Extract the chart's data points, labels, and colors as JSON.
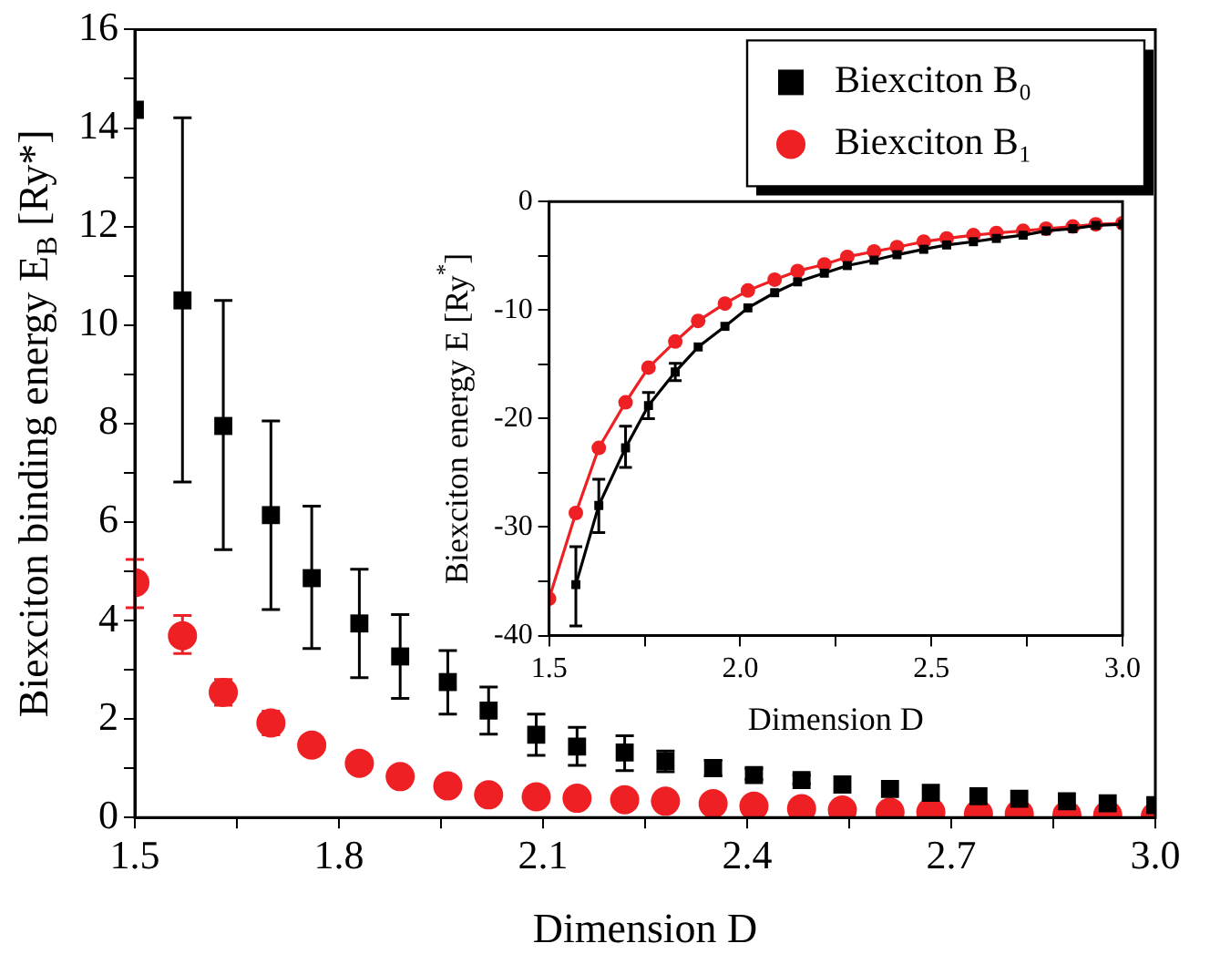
{
  "chart_data": [
    {
      "type": "scatter",
      "xlabel": "Dimension D",
      "ylabel": "Biexciton binding energy E$_{B}$ [Ry*]",
      "x": [
        1.5,
        1.57,
        1.63,
        1.7,
        1.76,
        1.83,
        1.89,
        1.96,
        2.02,
        2.09,
        2.15,
        2.22,
        2.28,
        2.35,
        2.41,
        2.48,
        2.54,
        2.61,
        2.67,
        2.74,
        2.8,
        2.87,
        2.93,
        3.0
      ],
      "series": [
        {
          "name": "Biexciton B₀",
          "color": "#000000",
          "marker": "square",
          "values": [
            14.37,
            10.5,
            7.95,
            6.14,
            4.86,
            3.94,
            3.27,
            2.75,
            2.17,
            1.68,
            1.44,
            1.32,
            1.14,
            1.0,
            0.86,
            0.76,
            0.67,
            0.58,
            0.5,
            0.43,
            0.38,
            0.33,
            0.29,
            0.25
          ],
          "errors": [
            null,
            [
              6.81,
              14.21
            ],
            [
              5.44,
              10.5
            ],
            [
              4.22,
              8.05
            ],
            [
              3.43,
              6.32
            ],
            [
              2.84,
              5.04
            ],
            [
              2.42,
              4.12
            ],
            [
              2.1,
              3.39
            ],
            [
              1.69,
              2.65
            ],
            [
              1.26,
              2.1
            ],
            [
              1.06,
              1.83
            ],
            [
              0.95,
              1.66
            ],
            [
              0.93,
              1.35
            ],
            [
              0.85,
              1.16
            ],
            [
              0.77,
              1.0
            ],
            [
              0.68,
              0.86
            ],
            null,
            null,
            null,
            null,
            null,
            null,
            null,
            null
          ]
        },
        {
          "name": "Biexciton B₁",
          "color": "#ee2024",
          "marker": "circle",
          "values": [
            4.77,
            3.69,
            2.54,
            1.92,
            1.47,
            1.1,
            0.83,
            0.64,
            0.46,
            0.42,
            0.39,
            0.36,
            0.33,
            0.28,
            0.23,
            0.18,
            0.15,
            0.11,
            0.11,
            0.07,
            0.07,
            0.05,
            0.05,
            0.02
          ],
          "errors": [
            [
              4.26,
              5.24
            ],
            [
              3.33,
              4.1
            ],
            [
              2.28,
              2.8
            ],
            [
              1.68,
              2.16
            ],
            null,
            null,
            null,
            null,
            null,
            null,
            null,
            null,
            null,
            null,
            null,
            null,
            null,
            null,
            null,
            null,
            null,
            null,
            null,
            null
          ]
        }
      ],
      "xlim": [
        1.5,
        3.0
      ],
      "xticks": [
        1.5,
        {
          "value": 1.65,
          "label": null
        },
        1.8,
        {
          "value": 1.95,
          "label": null
        },
        2.1,
        {
          "value": 2.25,
          "label": null
        },
        2.4,
        {
          "value": 2.55,
          "label": null
        },
        2.7,
        {
          "value": 2.85,
          "label": null
        },
        {
          "value": 3,
          "label": "3.0"
        }
      ],
      "ylim": [
        0,
        16
      ],
      "yticks": [
        0,
        {
          "value": 1,
          "label": null
        },
        2,
        {
          "value": 3,
          "label": null
        },
        4,
        {
          "value": 5,
          "label": null
        },
        6,
        {
          "value": 7,
          "label": null
        },
        8,
        {
          "value": 9,
          "label": null
        },
        10,
        {
          "value": 11,
          "label": null
        },
        12,
        {
          "value": 13,
          "label": null
        },
        14,
        {
          "value": 15,
          "label": null
        },
        16
      ],
      "grid": false,
      "legend": "top right"
    },
    {
      "type": "line",
      "xlabel": "Dimension D",
      "ylabel": "Biexciton energy E [Ry$^{*}$]",
      "x": [
        1.5,
        1.57,
        1.63,
        1.7,
        1.76,
        1.83,
        1.89,
        1.96,
        2.02,
        2.09,
        2.15,
        2.22,
        2.28,
        2.35,
        2.41,
        2.48,
        2.54,
        2.61,
        2.67,
        2.74,
        2.8,
        2.87,
        2.93,
        3.0
      ],
      "series": [
        {
          "color": "#000000",
          "marker": "square",
          "values": [
            null,
            -35.3,
            -28.0,
            -22.7,
            -18.8,
            -15.7,
            -13.4,
            -11.5,
            -9.8,
            -8.4,
            -7.4,
            -6.6,
            -5.9,
            -5.4,
            -4.9,
            -4.4,
            -4.0,
            -3.7,
            -3.4,
            -3.1,
            -2.7,
            -2.5,
            -2.2,
            -2.1
          ],
          "errors": [
            null,
            [
              -39.1,
              -31.8
            ],
            [
              -30.5,
              -25.6
            ],
            [
              -24.5,
              -20.7
            ],
            [
              -20.0,
              -17.6
            ],
            [
              -16.5,
              -14.9
            ],
            null,
            null,
            null,
            null,
            null,
            null,
            null,
            null,
            null,
            null,
            null,
            null,
            null,
            null,
            null,
            null,
            null,
            null
          ]
        },
        {
          "color": "#ee2024",
          "marker": "circle",
          "values": [
            -36.6,
            -28.7,
            -22.7,
            -18.5,
            -15.3,
            -12.9,
            -11.0,
            -9.4,
            -8.2,
            -7.2,
            -6.4,
            -5.8,
            -5.1,
            -4.6,
            -4.2,
            -3.7,
            -3.4,
            -3.1,
            -2.9,
            -2.7,
            -2.5,
            -2.3,
            -2.1,
            -2.0
          ]
        }
      ],
      "xlim": [
        1.5,
        3.0
      ],
      "xticks": [
        1.5,
        {
          "value": 1.75,
          "label": null
        },
        {
          "value": 2,
          "label": "2.0"
        },
        {
          "value": 2.25,
          "label": null
        },
        2.5,
        {
          "value": 2.75,
          "label": null
        },
        {
          "value": 3,
          "label": "3.0"
        }
      ],
      "ylim": [
        -40,
        0
      ],
      "yticks": [
        -40,
        {
          "value": -35,
          "label": null
        },
        -30,
        {
          "value": -25,
          "label": null
        },
        -20,
        {
          "value": -15,
          "label": null
        },
        -10,
        {
          "value": -5,
          "label": null
        },
        0
      ],
      "grid": false,
      "line_style": "solid"
    }
  ]
}
